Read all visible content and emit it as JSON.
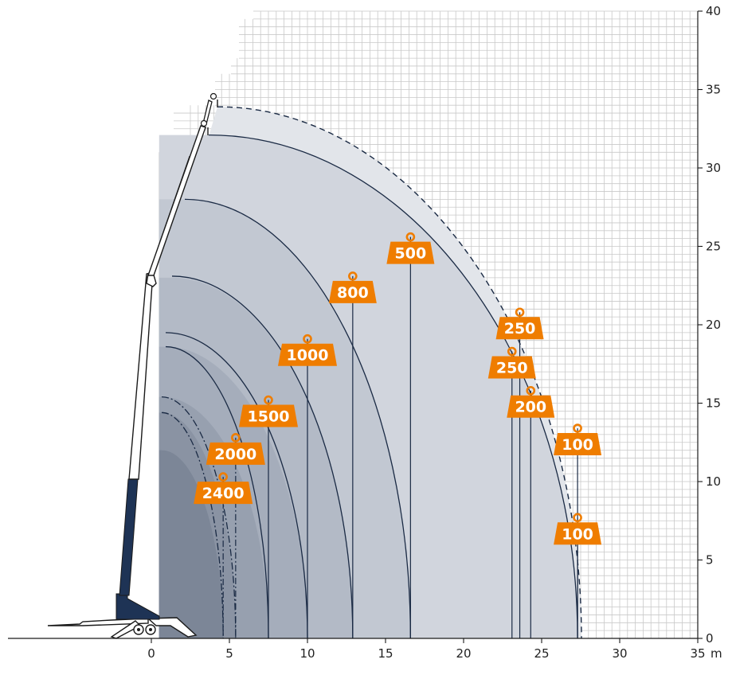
{
  "chart_data": {
    "type": "load-chart",
    "title": "",
    "xlabel": "",
    "ylabel": "",
    "x_unit": "m",
    "xlim": [
      -9.5,
      35
    ],
    "ylim": [
      0,
      40
    ],
    "x_ticks": [
      0,
      5,
      10,
      15,
      20,
      25,
      30,
      35
    ],
    "x_tick_labels": [
      "0",
      "5",
      "10",
      "15",
      "20",
      "25",
      "30",
      "35"
    ],
    "y_ticks": [
      0,
      5,
      10,
      15,
      20,
      25,
      30,
      35,
      40
    ],
    "y_tick_labels": [
      "0",
      "5",
      "10",
      "15",
      "20",
      "25",
      "30",
      "35",
      "40"
    ],
    "grid": true,
    "colors": {
      "weight_tag": "#ef7d00",
      "curve_line": "#1a2a44",
      "machine_dark": "#1e3355"
    },
    "load_curves": [
      {
        "weight": "2400",
        "max_radius": 4.6,
        "max_height": 14.4,
        "style": "dashdot"
      },
      {
        "weight": "2000",
        "max_radius": 5.4,
        "max_height": 15.4,
        "style": "dashdot"
      },
      {
        "weight": "1500",
        "max_radius": 7.5,
        "max_height": 18.6,
        "style": "solid"
      },
      {
        "weight": "1000",
        "max_radius": 10.0,
        "max_height": 23.0,
        "style": "solid"
      },
      {
        "weight": "800",
        "max_radius": 12.9,
        "max_height": 28.0,
        "style": "solid"
      },
      {
        "weight": "500",
        "max_radius": 16.6,
        "max_height": 32.1,
        "style": "solid"
      },
      {
        "weight": "250",
        "max_radius": 23.1,
        "max_height": 32.1,
        "style": "solid"
      },
      {
        "weight": "200",
        "max_radius": 24.3,
        "max_height": 32.1,
        "style": "solid"
      },
      {
        "weight": "100",
        "max_radius": 27.3,
        "max_height": 32.1,
        "style": "solid"
      }
    ],
    "jib_envelope": {
      "max_height": 33.9,
      "style": "dashed"
    },
    "weight_tags": [
      {
        "label": "2400",
        "x": 4.6,
        "y": 10.3
      },
      {
        "label": "2000",
        "x": 5.4,
        "y": 12.8
      },
      {
        "label": "1500",
        "x": 7.5,
        "y": 15.2
      },
      {
        "label": "1000",
        "x": 10.0,
        "y": 19.1
      },
      {
        "label": "800",
        "x": 12.9,
        "y": 23.1
      },
      {
        "label": "500",
        "x": 16.6,
        "y": 25.6
      },
      {
        "label": "250",
        "x": 23.6,
        "y": 20.8
      },
      {
        "label": "250",
        "x": 23.1,
        "y": 18.3
      },
      {
        "label": "200",
        "x": 24.3,
        "y": 15.8
      },
      {
        "label": "100",
        "x": 27.3,
        "y": 13.4
      },
      {
        "label": "100",
        "x": 27.3,
        "y": 7.7
      }
    ]
  }
}
